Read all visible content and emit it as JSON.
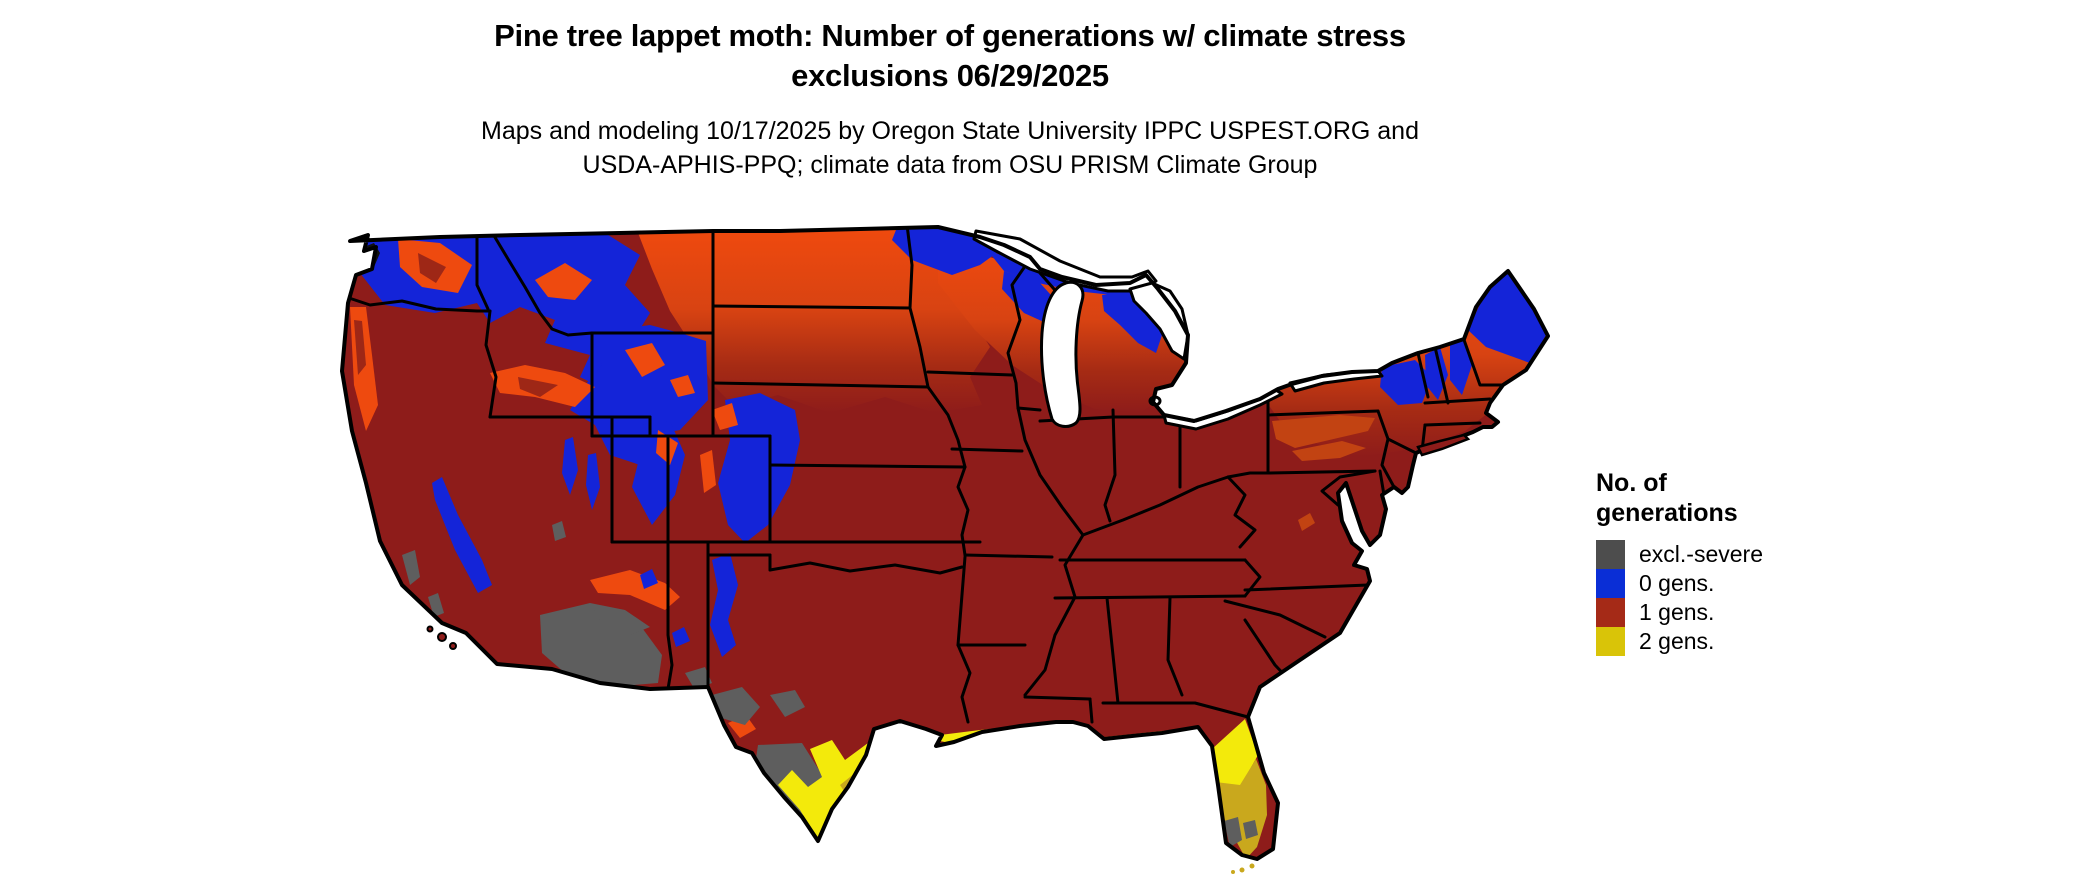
{
  "title": {
    "line1": "Pine tree lappet moth: Number of generations w/ climate stress",
    "line2": "exclusions 06/29/2025"
  },
  "subtitle": {
    "line1": "Maps and modeling 10/17/2025 by Oregon State University IPPC USPEST.ORG and",
    "line2": "USDA-APHIS-PPQ; climate data from OSU PRISM Climate Group"
  },
  "legend": {
    "title_line1": "No. of",
    "title_line2": "generations",
    "items": [
      {
        "label": "excl.-severe",
        "color": "#4D4D4D"
      },
      {
        "label": "0 gens.",
        "color": "#0A2ED6"
      },
      {
        "label": "1 gens.",
        "color": "#A52A17"
      },
      {
        "label": "2 gens.",
        "color": "#D9C408"
      }
    ]
  },
  "map": {
    "region": "Contiguous United States",
    "palette": {
      "base-red": "#8E1C1A",
      "orange": "#EE4A0F",
      "orange-dark": "#C24312",
      "core-red": "#9E2716",
      "blue": "#1424D8",
      "gray": "#5E5E5E",
      "yellow": "#F3EA0B",
      "gold": "#C9A81D",
      "border": "#000000"
    }
  }
}
